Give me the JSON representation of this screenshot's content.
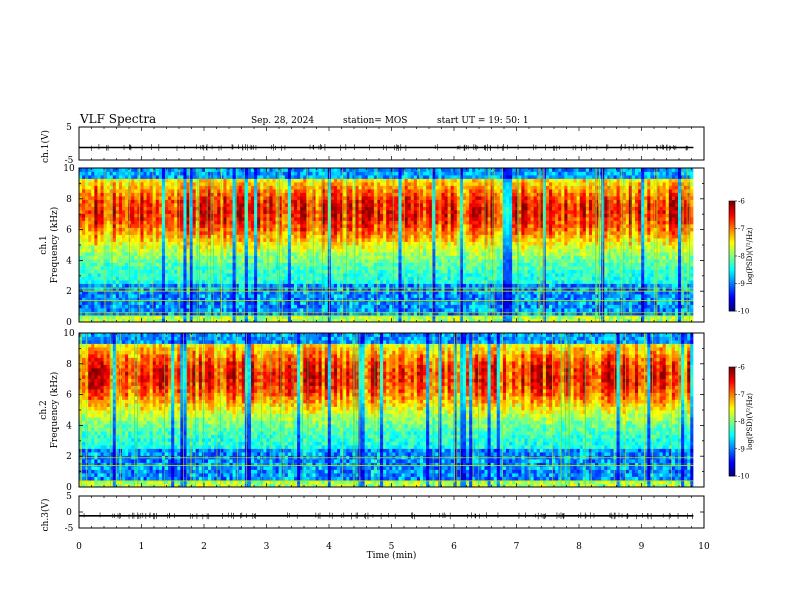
{
  "header": {
    "title": "VLF Spectra",
    "date": "Sep. 28, 2024",
    "station": "station= MOS",
    "start": "start  UT =   19: 50: 1"
  },
  "chart_data": [
    {
      "type": "line",
      "panel": "ch1-waveform",
      "ylabel": "ch.1(V)",
      "ylim": [
        -5,
        5
      ],
      "yticks": [
        "5",
        "-5"
      ],
      "series": [
        {
          "values": [
            -1.2,
            -1.2,
            -1.2,
            -1.2,
            -1.2,
            -1.2,
            -1.2,
            -1.2,
            -1.2,
            -1.2
          ]
        }
      ]
    },
    {
      "type": "heatmap",
      "panel": "ch1-spectrogram",
      "ylabel": "ch.1\nFrequency (kHz)",
      "ylim": [
        0,
        10
      ],
      "yticks": [
        "0",
        "2",
        "4",
        "6",
        "8",
        "10"
      ],
      "xlim": [
        0,
        9.83
      ],
      "colorbar": {
        "label": "log(PSD)(V²/Hz)",
        "range": [
          -10,
          -6
        ],
        "ticks": [
          "-6",
          "-7",
          "-8",
          "-9",
          "-10"
        ]
      },
      "lines_kHz": [
        0.4,
        0.6,
        1.4,
        2.0,
        2.2
      ],
      "seed": 11
    },
    {
      "type": "heatmap",
      "panel": "ch2-spectrogram",
      "ylabel": "ch.2\nFrequency (kHz)",
      "ylim": [
        0,
        10
      ],
      "yticks": [
        "0",
        "2",
        "4",
        "6",
        "8",
        "10"
      ],
      "xlim": [
        0,
        9.83
      ],
      "colorbar": {
        "label": "log(PSD)(V²/Hz)",
        "range": [
          -10,
          -6
        ],
        "ticks": [
          "-6",
          "-7",
          "-8",
          "-9",
          "-10"
        ]
      },
      "lines_kHz": [
        0.4,
        1.4,
        1.9
      ],
      "seed": 23
    },
    {
      "type": "line",
      "panel": "ch3-waveform",
      "ylabel": "ch.3(V)",
      "ylim": [
        -5,
        5
      ],
      "yticks": [
        "5",
        "0",
        "-5"
      ],
      "xlabel": "Time (min)",
      "xlim": [
        0,
        10
      ],
      "xticks": [
        "0",
        "1",
        "2",
        "3",
        "4",
        "5",
        "6",
        "7",
        "8",
        "9",
        "10"
      ],
      "series": [
        {
          "values": [
            -1.2,
            -1.2,
            -1.2,
            -1.2,
            -1.2,
            -1.2,
            -1.2,
            -1.2,
            -1.2,
            -1.2
          ]
        }
      ]
    }
  ]
}
